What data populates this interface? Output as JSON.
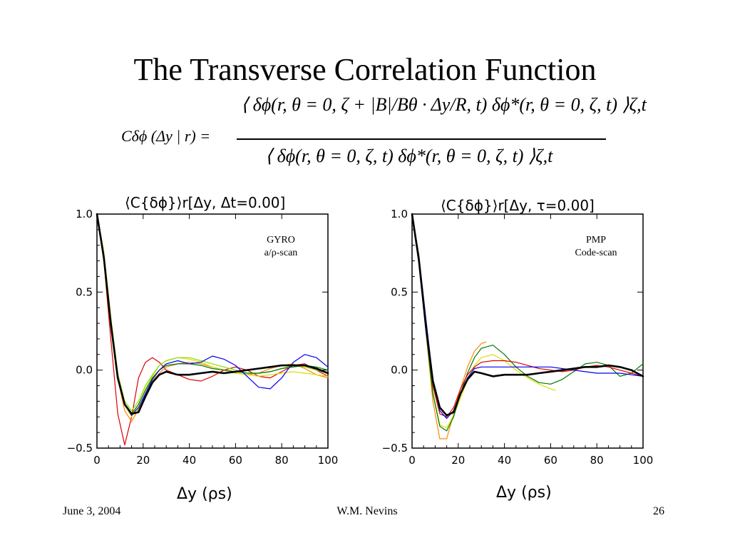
{
  "slide": {
    "title": "The Transverse Correlation Function",
    "formula": {
      "lhs": "Cδϕ (Δy | r) =",
      "numerator": "⟨ δϕ(r, θ = 0, ζ + |B|/Bθ · Δy/R, t) δϕ*(r, θ = 0, ζ, t) ⟩ζ,t",
      "denominator": "⟨ δϕ(r, θ = 0, ζ, t) δϕ*(r, θ = 0, ζ, t) ⟩ζ,t"
    },
    "footer": {
      "date": "June 3, 2004",
      "author": "W.M. Nevins",
      "page": "26"
    }
  },
  "colors": {
    "red": "#dd0000",
    "orange": "#ff8800",
    "yellow": "#d8e000",
    "lime": "#88dd00",
    "green": "#007700",
    "blue": "#0000ee",
    "black": "#000000"
  },
  "chart_data": [
    {
      "type": "line",
      "title": "⟨C{δϕ}⟩r[Δy, Δt=0.00]",
      "xlabel": "Δy (ρs)",
      "ylabel": "",
      "annotation": [
        "GYRO",
        "a/ρ-scan"
      ],
      "xlim": [
        0,
        100
      ],
      "ylim": [
        -0.5,
        1.0
      ],
      "xticks": [
        "0",
        "20",
        "40",
        "60",
        "80",
        "100"
      ],
      "yticks": [
        "1.0",
        "0.5",
        "0.0",
        "−0.5"
      ],
      "series": [
        {
          "color": "#dd0000",
          "width": 1.2,
          "x": [
            0,
            3,
            6,
            9,
            12,
            15,
            18,
            21,
            24,
            27,
            30,
            35,
            40,
            45,
            50,
            55,
            60,
            65,
            70,
            75,
            80,
            85,
            90,
            95,
            100
          ],
          "y": [
            1.0,
            0.7,
            0.2,
            -0.28,
            -0.48,
            -0.3,
            -0.05,
            0.05,
            0.08,
            0.05,
            0.0,
            -0.03,
            -0.06,
            -0.07,
            -0.04,
            0.0,
            0.02,
            0.0,
            -0.04,
            -0.05,
            -0.01,
            0.03,
            0.04,
            0.0,
            -0.04
          ]
        },
        {
          "color": "#ff8800",
          "width": 1.2,
          "x": [
            0,
            3,
            6,
            9,
            12,
            15,
            18,
            21,
            24,
            27,
            30,
            35,
            40,
            45,
            50,
            55,
            60,
            65,
            70,
            75,
            80,
            85,
            90,
            95,
            100
          ],
          "y": [
            1.0,
            0.74,
            0.33,
            -0.05,
            -0.26,
            -0.33,
            -0.25,
            -0.15,
            -0.07,
            -0.02,
            0.02,
            0.04,
            0.05,
            0.04,
            0.02,
            0.0,
            -0.02,
            -0.03,
            -0.02,
            0.01,
            0.03,
            0.04,
            0.01,
            -0.03,
            -0.05
          ]
        },
        {
          "color": "#d8e000",
          "width": 1.2,
          "x": [
            0,
            3,
            6,
            9,
            12,
            15,
            18,
            21,
            24,
            27,
            30,
            35,
            40,
            45,
            50,
            55,
            60,
            65,
            70,
            75,
            80,
            85,
            90,
            95,
            100
          ],
          "y": [
            1.0,
            0.76,
            0.34,
            -0.02,
            -0.22,
            -0.3,
            -0.22,
            -0.12,
            -0.04,
            0.03,
            0.06,
            0.08,
            0.07,
            0.05,
            0.02,
            0.0,
            -0.02,
            -0.03,
            -0.04,
            -0.03,
            -0.02,
            -0.01,
            -0.02,
            -0.03,
            -0.04
          ]
        },
        {
          "color": "#88dd00",
          "width": 1.2,
          "x": [
            0,
            3,
            6,
            9,
            12,
            15,
            18,
            21,
            24,
            27,
            30,
            35,
            40,
            45,
            50,
            55,
            60,
            65,
            70,
            75,
            80,
            85,
            90,
            95,
            100
          ],
          "y": [
            1.0,
            0.75,
            0.34,
            -0.02,
            -0.2,
            -0.26,
            -0.2,
            -0.1,
            -0.03,
            0.03,
            0.06,
            0.08,
            0.08,
            0.06,
            0.04,
            0.02,
            0.0,
            -0.02,
            -0.02,
            -0.01,
            0.01,
            0.03,
            0.02,
            0.0,
            -0.02
          ]
        },
        {
          "color": "#007700",
          "width": 1.2,
          "x": [
            0,
            3,
            6,
            9,
            12,
            15,
            18,
            21,
            24,
            27,
            30,
            35,
            40,
            45,
            50,
            55,
            60,
            65,
            70,
            75,
            80,
            85,
            90,
            95,
            100
          ],
          "y": [
            1.0,
            0.73,
            0.32,
            -0.04,
            -0.22,
            -0.28,
            -0.22,
            -0.13,
            -0.05,
            0.0,
            0.03,
            0.04,
            0.04,
            0.03,
            0.01,
            0.0,
            -0.01,
            -0.02,
            -0.02,
            -0.01,
            0.01,
            0.02,
            0.03,
            0.02,
            0.0
          ]
        },
        {
          "color": "#0000ee",
          "width": 1.2,
          "x": [
            0,
            3,
            6,
            9,
            12,
            15,
            18,
            21,
            24,
            27,
            30,
            35,
            40,
            45,
            50,
            55,
            60,
            65,
            70,
            75,
            80,
            85,
            90,
            95,
            100
          ],
          "y": [
            1.0,
            0.7,
            0.3,
            -0.05,
            -0.22,
            -0.29,
            -0.24,
            -0.15,
            -0.06,
            0.0,
            0.04,
            0.06,
            0.04,
            0.05,
            0.09,
            0.07,
            0.03,
            -0.04,
            -0.11,
            -0.12,
            -0.05,
            0.05,
            0.1,
            0.08,
            0.02
          ]
        },
        {
          "color": "#000000",
          "width": 2.6,
          "x": [
            0,
            3,
            6,
            9,
            12,
            15,
            18,
            21,
            24,
            27,
            30,
            35,
            40,
            45,
            50,
            55,
            60,
            65,
            70,
            75,
            80,
            85,
            90,
            95,
            100
          ],
          "y": [
            1.0,
            0.72,
            0.3,
            -0.05,
            -0.22,
            -0.28,
            -0.27,
            -0.17,
            -0.08,
            -0.03,
            -0.01,
            -0.03,
            -0.03,
            -0.02,
            -0.01,
            -0.02,
            -0.01,
            0.0,
            0.01,
            0.02,
            0.03,
            0.03,
            0.03,
            0.01,
            -0.02
          ]
        }
      ]
    },
    {
      "type": "line",
      "title": "⟨C{δϕ}⟩r[Δy, τ=0.00]",
      "xlabel": "Δy (ρs)",
      "ylabel": "",
      "annotation": [
        "PMP",
        "Code-scan"
      ],
      "xlim": [
        0,
        100
      ],
      "ylim": [
        -0.5,
        1.0
      ],
      "xticks": [
        "0",
        "20",
        "40",
        "60",
        "80",
        "100"
      ],
      "yticks": [
        "1.0",
        "0.5",
        "0.0",
        "−0.5"
      ],
      "series": [
        {
          "color": "#ff8800",
          "width": 1.2,
          "x": [
            0,
            3,
            6,
            9,
            12,
            15,
            18,
            21,
            24,
            27,
            30,
            32
          ],
          "y": [
            1.0,
            0.72,
            0.25,
            -0.2,
            -0.44,
            -0.44,
            -0.28,
            -0.12,
            0.02,
            0.12,
            0.17,
            0.18
          ]
        },
        {
          "color": "#d8e000",
          "width": 1.2,
          "x": [
            0,
            3,
            6,
            9,
            12,
            15,
            18,
            21,
            24,
            27,
            30,
            35,
            40,
            45,
            50,
            55,
            60,
            62
          ],
          "y": [
            1.0,
            0.74,
            0.3,
            -0.14,
            -0.35,
            -0.37,
            -0.29,
            -0.18,
            -0.06,
            0.03,
            0.08,
            0.1,
            0.06,
            0.0,
            -0.05,
            -0.09,
            -0.12,
            -0.13
          ]
        },
        {
          "color": "#007700",
          "width": 1.2,
          "x": [
            0,
            3,
            6,
            9,
            12,
            15,
            18,
            21,
            24,
            27,
            30,
            35,
            40,
            45,
            50,
            55,
            60,
            65,
            70,
            75,
            80,
            85,
            90,
            95,
            100
          ],
          "y": [
            1.0,
            0.7,
            0.25,
            -0.15,
            -0.36,
            -0.39,
            -0.3,
            -0.15,
            -0.02,
            0.08,
            0.14,
            0.16,
            0.1,
            0.02,
            -0.04,
            -0.08,
            -0.09,
            -0.06,
            -0.01,
            0.04,
            0.05,
            0.03,
            -0.04,
            -0.02,
            0.04
          ]
        },
        {
          "color": "#dd0000",
          "width": 1.2,
          "x": [
            0,
            3,
            6,
            9,
            12,
            15,
            18,
            21,
            24,
            27,
            30,
            35,
            40,
            45,
            50,
            55,
            60,
            65,
            70,
            75,
            80,
            85,
            90,
            95,
            100
          ],
          "y": [
            1.0,
            0.72,
            0.3,
            -0.1,
            -0.28,
            -0.3,
            -0.24,
            -0.12,
            -0.03,
            0.02,
            0.05,
            0.06,
            0.06,
            0.05,
            0.03,
            0.01,
            0.0,
            -0.01,
            0.0,
            0.02,
            0.03,
            0.02,
            0.0,
            -0.02,
            -0.04
          ]
        },
        {
          "color": "#0000ee",
          "width": 1.2,
          "x": [
            0,
            3,
            6,
            9,
            12,
            15,
            18,
            21,
            24,
            27,
            30,
            35,
            40,
            45,
            50,
            55,
            60,
            65,
            70,
            75,
            80,
            85,
            90,
            95,
            100
          ],
          "y": [
            1.0,
            0.73,
            0.33,
            -0.06,
            -0.26,
            -0.31,
            -0.26,
            -0.15,
            -0.05,
            0.01,
            0.02,
            0.02,
            0.02,
            0.02,
            0.02,
            0.02,
            0.02,
            0.01,
            0.0,
            -0.01,
            -0.02,
            -0.02,
            -0.02,
            -0.03,
            -0.04
          ]
        },
        {
          "color": "#000000",
          "width": 2.6,
          "x": [
            0,
            3,
            6,
            9,
            12,
            15,
            18,
            21,
            24,
            27,
            30,
            35,
            40,
            45,
            50,
            55,
            60,
            65,
            70,
            75,
            80,
            85,
            90,
            95,
            100
          ],
          "y": [
            1.0,
            0.7,
            0.28,
            -0.07,
            -0.24,
            -0.29,
            -0.27,
            -0.15,
            -0.06,
            -0.01,
            -0.02,
            -0.04,
            -0.03,
            -0.03,
            -0.03,
            -0.02,
            -0.01,
            0.0,
            0.01,
            0.02,
            0.02,
            0.03,
            0.02,
            0.0,
            -0.04
          ]
        }
      ]
    }
  ]
}
